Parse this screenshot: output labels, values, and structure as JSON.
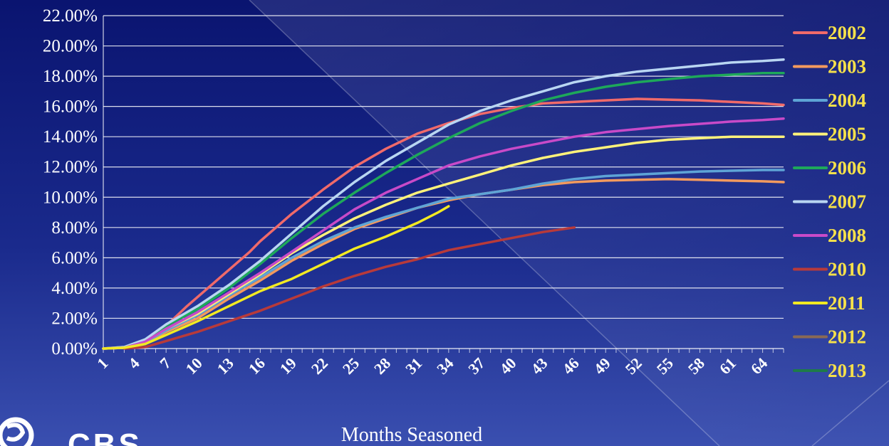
{
  "logo": {
    "text": "CBS"
  },
  "chart_data": {
    "type": "line",
    "title": "",
    "xlabel": "Months Seasoned",
    "ylabel": "",
    "ylim": [
      0,
      22
    ],
    "xlim": [
      1,
      66
    ],
    "y_ticks": [
      "0.00%",
      "2.00%",
      "4.00%",
      "6.00%",
      "8.00%",
      "10.00%",
      "12.00%",
      "14.00%",
      "16.00%",
      "18.00%",
      "20.00%",
      "22.00%"
    ],
    "x_ticks": [
      "1",
      "4",
      "7",
      "10",
      "13",
      "16",
      "19",
      "22",
      "25",
      "28",
      "31",
      "34",
      "37",
      "40",
      "43",
      "46",
      "49",
      "52",
      "55",
      "58",
      "61",
      "64"
    ],
    "grid": true,
    "legend_position": "right",
    "series": [
      {
        "name": "2002",
        "color": "#f06a6a",
        "points": [
          [
            1,
            0
          ],
          [
            3,
            0.1
          ],
          [
            5,
            0.5
          ],
          [
            7,
            1.5
          ],
          [
            9,
            2.8
          ],
          [
            11,
            4.0
          ],
          [
            13,
            5.2
          ],
          [
            15,
            6.4
          ],
          [
            16,
            7.1
          ],
          [
            19,
            8.9
          ],
          [
            22,
            10.5
          ],
          [
            25,
            12.0
          ],
          [
            28,
            13.2
          ],
          [
            31,
            14.2
          ],
          [
            34,
            14.9
          ],
          [
            37,
            15.5
          ],
          [
            40,
            15.9
          ],
          [
            43,
            16.2
          ],
          [
            46,
            16.3
          ],
          [
            49,
            16.4
          ],
          [
            52,
            16.5
          ],
          [
            55,
            16.45
          ],
          [
            58,
            16.4
          ],
          [
            61,
            16.3
          ],
          [
            64,
            16.2
          ],
          [
            66,
            16.1
          ]
        ]
      },
      {
        "name": "2003",
        "color": "#f39a5e",
        "points": [
          [
            1,
            0
          ],
          [
            3,
            0.05
          ],
          [
            5,
            0.35
          ],
          [
            7,
            1.1
          ],
          [
            10,
            2.0
          ],
          [
            13,
            3.3
          ],
          [
            16,
            4.5
          ],
          [
            19,
            5.8
          ],
          [
            22,
            6.9
          ],
          [
            25,
            7.9
          ],
          [
            28,
            8.6
          ],
          [
            31,
            9.3
          ],
          [
            34,
            9.8
          ],
          [
            37,
            10.2
          ],
          [
            40,
            10.5
          ],
          [
            43,
            10.8
          ],
          [
            46,
            11.0
          ],
          [
            49,
            11.1
          ],
          [
            52,
            11.15
          ],
          [
            55,
            11.2
          ],
          [
            58,
            11.15
          ],
          [
            61,
            11.1
          ],
          [
            64,
            11.05
          ],
          [
            66,
            11.0
          ]
        ]
      },
      {
        "name": "2004",
        "color": "#5ea4d6",
        "points": [
          [
            1,
            0
          ],
          [
            3,
            0.05
          ],
          [
            5,
            0.4
          ],
          [
            7,
            1.2
          ],
          [
            10,
            2.2
          ],
          [
            13,
            3.5
          ],
          [
            16,
            4.7
          ],
          [
            19,
            6.0
          ],
          [
            22,
            7.1
          ],
          [
            25,
            8.0
          ],
          [
            28,
            8.7
          ],
          [
            31,
            9.3
          ],
          [
            34,
            9.9
          ],
          [
            37,
            10.2
          ],
          [
            40,
            10.5
          ],
          [
            43,
            10.9
          ],
          [
            46,
            11.2
          ],
          [
            49,
            11.4
          ],
          [
            52,
            11.5
          ],
          [
            55,
            11.6
          ],
          [
            58,
            11.7
          ],
          [
            61,
            11.75
          ],
          [
            64,
            11.8
          ],
          [
            66,
            11.8
          ]
        ]
      },
      {
        "name": "2005",
        "color": "#fff27a",
        "points": [
          [
            1,
            0
          ],
          [
            3,
            0.05
          ],
          [
            5,
            0.45
          ],
          [
            7,
            1.3
          ],
          [
            10,
            2.3
          ],
          [
            13,
            3.6
          ],
          [
            16,
            4.9
          ],
          [
            19,
            6.3
          ],
          [
            22,
            7.5
          ],
          [
            25,
            8.6
          ],
          [
            28,
            9.5
          ],
          [
            31,
            10.3
          ],
          [
            34,
            10.9
          ],
          [
            37,
            11.5
          ],
          [
            40,
            12.1
          ],
          [
            43,
            12.6
          ],
          [
            46,
            13.0
          ],
          [
            49,
            13.3
          ],
          [
            52,
            13.6
          ],
          [
            55,
            13.8
          ],
          [
            58,
            13.9
          ],
          [
            61,
            14.0
          ],
          [
            64,
            14.0
          ],
          [
            66,
            14.0
          ]
        ]
      },
      {
        "name": "2006",
        "color": "#1ea85a",
        "points": [
          [
            1,
            0
          ],
          [
            3,
            0.1
          ],
          [
            5,
            0.6
          ],
          [
            7,
            1.5
          ],
          [
            10,
            2.6
          ],
          [
            13,
            4.0
          ],
          [
            16,
            5.6
          ],
          [
            19,
            7.3
          ],
          [
            22,
            8.9
          ],
          [
            25,
            10.3
          ],
          [
            28,
            11.6
          ],
          [
            31,
            12.8
          ],
          [
            34,
            13.9
          ],
          [
            37,
            14.9
          ],
          [
            40,
            15.7
          ],
          [
            43,
            16.4
          ],
          [
            46,
            16.9
          ],
          [
            49,
            17.3
          ],
          [
            52,
            17.6
          ],
          [
            55,
            17.8
          ],
          [
            58,
            18.0
          ],
          [
            61,
            18.1
          ],
          [
            64,
            18.2
          ],
          [
            66,
            18.2
          ]
        ]
      },
      {
        "name": "2007",
        "color": "#b9d6f2",
        "points": [
          [
            1,
            0
          ],
          [
            3,
            0.1
          ],
          [
            5,
            0.6
          ],
          [
            7,
            1.6
          ],
          [
            10,
            2.8
          ],
          [
            13,
            4.2
          ],
          [
            16,
            5.8
          ],
          [
            19,
            7.6
          ],
          [
            22,
            9.4
          ],
          [
            25,
            11.0
          ],
          [
            28,
            12.4
          ],
          [
            31,
            13.6
          ],
          [
            34,
            14.8
          ],
          [
            37,
            15.7
          ],
          [
            40,
            16.4
          ],
          [
            43,
            17.0
          ],
          [
            46,
            17.6
          ],
          [
            49,
            18.0
          ],
          [
            52,
            18.3
          ],
          [
            55,
            18.5
          ],
          [
            58,
            18.7
          ],
          [
            61,
            18.9
          ],
          [
            64,
            19.0
          ],
          [
            66,
            19.1
          ]
        ]
      },
      {
        "name": "2008",
        "color": "#c84ac8",
        "points": [
          [
            1,
            0
          ],
          [
            3,
            0.05
          ],
          [
            5,
            0.45
          ],
          [
            7,
            1.3
          ],
          [
            10,
            2.4
          ],
          [
            13,
            3.7
          ],
          [
            16,
            5.0
          ],
          [
            19,
            6.4
          ],
          [
            22,
            7.8
          ],
          [
            25,
            9.2
          ],
          [
            28,
            10.3
          ],
          [
            31,
            11.2
          ],
          [
            34,
            12.1
          ],
          [
            37,
            12.7
          ],
          [
            40,
            13.2
          ],
          [
            43,
            13.6
          ],
          [
            46,
            14.0
          ],
          [
            49,
            14.3
          ],
          [
            52,
            14.5
          ],
          [
            55,
            14.7
          ],
          [
            58,
            14.85
          ],
          [
            61,
            15.0
          ],
          [
            64,
            15.1
          ],
          [
            66,
            15.2
          ]
        ]
      },
      {
        "name": "2010",
        "color": "#b83a3a",
        "points": [
          [
            3,
            0
          ],
          [
            5,
            0.1
          ],
          [
            7,
            0.5
          ],
          [
            10,
            1.1
          ],
          [
            13,
            1.8
          ],
          [
            16,
            2.5
          ],
          [
            19,
            3.3
          ],
          [
            22,
            4.1
          ],
          [
            25,
            4.8
          ],
          [
            28,
            5.4
          ],
          [
            31,
            5.9
          ],
          [
            34,
            6.5
          ],
          [
            37,
            6.9
          ],
          [
            40,
            7.3
          ],
          [
            43,
            7.7
          ],
          [
            46,
            8.0
          ]
        ]
      },
      {
        "name": "2011",
        "color": "#f2ea22",
        "points": [
          [
            1,
            0
          ],
          [
            3,
            0.05
          ],
          [
            5,
            0.3
          ],
          [
            7,
            0.9
          ],
          [
            10,
            1.8
          ],
          [
            13,
            2.8
          ],
          [
            16,
            3.8
          ],
          [
            19,
            4.6
          ],
          [
            22,
            5.6
          ],
          [
            25,
            6.6
          ],
          [
            28,
            7.4
          ],
          [
            31,
            8.3
          ],
          [
            33,
            9.0
          ],
          [
            34,
            9.4
          ]
        ]
      },
      {
        "name": "2012",
        "color": "#8a6a55",
        "points": []
      },
      {
        "name": "2013",
        "color": "#1e7a4a",
        "points": []
      }
    ]
  }
}
